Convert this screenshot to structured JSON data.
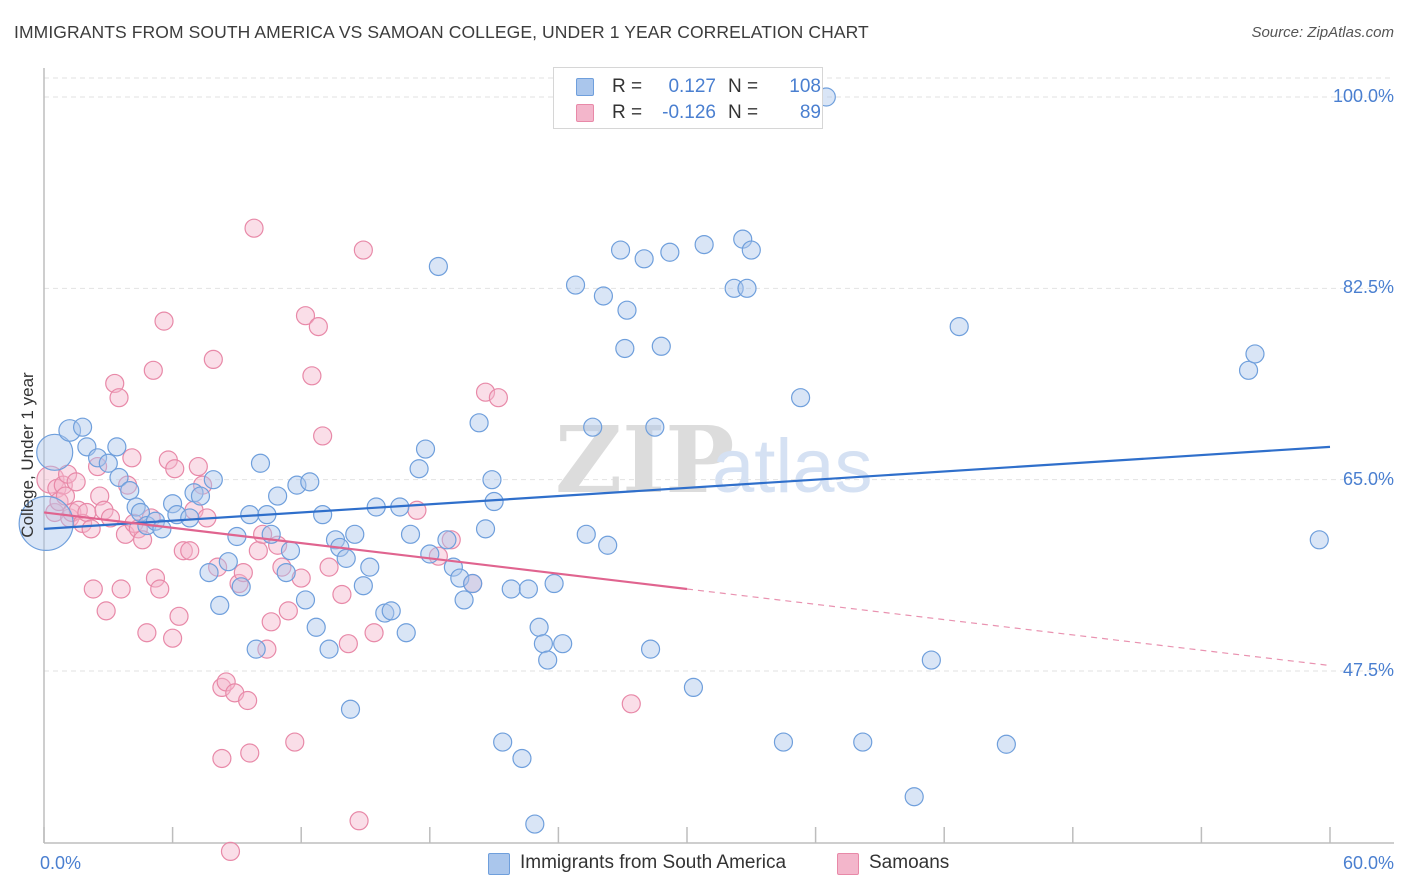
{
  "header": {
    "title": "IMMIGRANTS FROM SOUTH AMERICA VS SAMOAN COLLEGE, UNDER 1 YEAR CORRELATION CHART",
    "source": "Source: ZipAtlas.com"
  },
  "legend": {
    "row1": {
      "r_label": "R =",
      "r_value": "0.127",
      "n_label": "N =",
      "n_value": "108"
    },
    "row2": {
      "r_label": "R =",
      "r_value": "-0.126",
      "n_label": "N =",
      "n_value": "89"
    }
  },
  "colors": {
    "blue_fill": "#aac6ec",
    "blue_stroke": "#6f9fdc",
    "blue_line": "#2f6fcb",
    "pink_fill": "#f3b6cb",
    "pink_stroke": "#e889a8",
    "pink_line": "#e0648f",
    "tick_text": "#4a7fd0"
  },
  "watermark": {
    "part1": "ZIP",
    "part2": "atlas"
  },
  "chart_data": {
    "type": "scatter",
    "title": "IMMIGRANTS FROM SOUTH AMERICA VS SAMOAN COLLEGE, UNDER 1 YEAR CORRELATION CHART",
    "xlabel": "",
    "ylabel": "College, Under 1 year",
    "xlim": [
      0,
      60
    ],
    "ylim": [
      31,
      102
    ],
    "x_tick_labels": [
      "0.0%",
      "60.0%"
    ],
    "y_ticks": [
      47.5,
      65.0,
      82.5,
      100.0
    ],
    "y_tick_labels": [
      "47.5%",
      "65.0%",
      "82.5%",
      "100.0%"
    ],
    "grid": true,
    "legend_position": "top-center",
    "series": [
      {
        "name": "Immigrants from South America",
        "r": 0.127,
        "n": 108,
        "trend": {
          "x0": 0,
          "y0": 60.5,
          "x1": 60,
          "y1": 68.0,
          "dashed_from_x": null
        },
        "points": [
          [
            0.1,
            61.0,
            3.0
          ],
          [
            0.5,
            67.5,
            2.0
          ],
          [
            1.2,
            69.5,
            1.2
          ],
          [
            2.0,
            68.0,
            1.0
          ],
          [
            2.5,
            67.0,
            1.0
          ],
          [
            1.8,
            69.8,
            1.0
          ],
          [
            3.0,
            66.5,
            1.0
          ],
          [
            3.5,
            65.2,
            1.0
          ],
          [
            3.4,
            68.0,
            1.0
          ],
          [
            4.0,
            64.0,
            1.0
          ],
          [
            4.3,
            62.5,
            1.0
          ],
          [
            4.5,
            62.0,
            1.0
          ],
          [
            4.8,
            60.8,
            1.0
          ],
          [
            5.2,
            61.2,
            1.0
          ],
          [
            5.5,
            60.5,
            1.0
          ],
          [
            6.0,
            62.8,
            1.0
          ],
          [
            6.2,
            61.8,
            1.0
          ],
          [
            6.8,
            61.5,
            1.0
          ],
          [
            7.0,
            63.8,
            1.0
          ],
          [
            7.3,
            63.5,
            1.0
          ],
          [
            7.7,
            56.5,
            1.0
          ],
          [
            7.9,
            65.0,
            1.0
          ],
          [
            8.2,
            53.5,
            1.0
          ],
          [
            8.6,
            57.5,
            1.0
          ],
          [
            9.0,
            59.8,
            1.0
          ],
          [
            9.2,
            55.2,
            1.0
          ],
          [
            9.6,
            61.8,
            1.0
          ],
          [
            9.9,
            49.5,
            1.0
          ],
          [
            10.1,
            66.5,
            1.0
          ],
          [
            10.4,
            61.8,
            1.0
          ],
          [
            10.6,
            60.0,
            1.0
          ],
          [
            10.9,
            63.5,
            1.0
          ],
          [
            11.3,
            56.5,
            1.0
          ],
          [
            11.5,
            58.5,
            1.0
          ],
          [
            11.8,
            64.5,
            1.0
          ],
          [
            12.2,
            54.0,
            1.0
          ],
          [
            12.4,
            64.8,
            1.0
          ],
          [
            12.7,
            51.5,
            1.0
          ],
          [
            13.0,
            61.8,
            1.0
          ],
          [
            13.3,
            49.5,
            1.0
          ],
          [
            13.6,
            59.5,
            1.0
          ],
          [
            13.8,
            58.8,
            1.0
          ],
          [
            14.1,
            57.8,
            1.0
          ],
          [
            14.3,
            44.0,
            1.0
          ],
          [
            14.5,
            60.0,
            1.0
          ],
          [
            14.9,
            55.3,
            1.0
          ],
          [
            15.2,
            57.0,
            1.0
          ],
          [
            15.5,
            62.5,
            1.0
          ],
          [
            15.9,
            52.8,
            1.0
          ],
          [
            16.2,
            53.0,
            1.0
          ],
          [
            16.6,
            62.5,
            1.0
          ],
          [
            16.9,
            51.0,
            1.0
          ],
          [
            17.1,
            60.0,
            1.0
          ],
          [
            17.5,
            66.0,
            1.0
          ],
          [
            17.8,
            67.8,
            1.0
          ],
          [
            18.0,
            58.2,
            1.0
          ],
          [
            18.4,
            84.5,
            1.0
          ],
          [
            18.8,
            59.5,
            1.0
          ],
          [
            19.1,
            57.0,
            1.0
          ],
          [
            19.4,
            56.0,
            1.0
          ],
          [
            19.6,
            54.0,
            1.0
          ],
          [
            20.0,
            55.5,
            1.0
          ],
          [
            20.3,
            70.2,
            1.0
          ],
          [
            20.6,
            60.5,
            1.0
          ],
          [
            20.9,
            65.0,
            1.0
          ],
          [
            21.0,
            63.0,
            1.0
          ],
          [
            21.4,
            41.0,
            1.0
          ],
          [
            21.8,
            55.0,
            1.0
          ],
          [
            22.3,
            39.5,
            1.0
          ],
          [
            22.6,
            55.0,
            1.0
          ],
          [
            22.9,
            33.5,
            1.0
          ],
          [
            23.1,
            51.5,
            1.0
          ],
          [
            23.3,
            50.0,
            1.0
          ],
          [
            23.5,
            48.5,
            1.0
          ],
          [
            23.8,
            55.5,
            1.0
          ],
          [
            24.2,
            50.0,
            1.0
          ],
          [
            24.8,
            82.8,
            1.0
          ],
          [
            25.3,
            60.0,
            1.0
          ],
          [
            25.6,
            69.8,
            1.0
          ],
          [
            26.1,
            81.8,
            1.0
          ],
          [
            26.3,
            59.0,
            1.0
          ],
          [
            26.9,
            86.0,
            1.0
          ],
          [
            27.1,
            77.0,
            1.0
          ],
          [
            27.2,
            80.5,
            1.0
          ],
          [
            28.0,
            85.2,
            1.0
          ],
          [
            28.3,
            49.5,
            1.0
          ],
          [
            28.5,
            69.8,
            1.0
          ],
          [
            28.8,
            77.2,
            1.0
          ],
          [
            29.2,
            85.8,
            1.0
          ],
          [
            30.3,
            46.0,
            1.0
          ],
          [
            30.8,
            86.5,
            1.0
          ],
          [
            32.2,
            82.5,
            1.0
          ],
          [
            32.6,
            87.0,
            1.0
          ],
          [
            32.8,
            82.5,
            1.0
          ],
          [
            33.0,
            86.0,
            1.0
          ],
          [
            34.5,
            41.0,
            1.0
          ],
          [
            35.3,
            72.5,
            1.0
          ],
          [
            36.5,
            100.0,
            1.0
          ],
          [
            38.2,
            41.0,
            1.0
          ],
          [
            40.6,
            36.0,
            1.0
          ],
          [
            41.4,
            48.5,
            1.0
          ],
          [
            42.7,
            79.0,
            1.0
          ],
          [
            44.9,
            40.8,
            1.0
          ],
          [
            56.2,
            75.0,
            1.0
          ],
          [
            56.5,
            76.5,
            1.0
          ],
          [
            59.5,
            59.5,
            1.0
          ]
        ]
      },
      {
        "name": "Samoans",
        "r": -0.126,
        "n": 89,
        "trend": {
          "x0": 0,
          "y0": 62.0,
          "x1": 60,
          "y1": 48.0,
          "dashed_from_x": 30
        },
        "points": [
          [
            0.3,
            65.0,
            1.5
          ],
          [
            0.5,
            62.0,
            1.0
          ],
          [
            0.6,
            64.2,
            1.0
          ],
          [
            0.7,
            63.0,
            1.0
          ],
          [
            0.9,
            64.5,
            1.0
          ],
          [
            1.0,
            63.5,
            1.0
          ],
          [
            1.1,
            65.5,
            1.0
          ],
          [
            1.2,
            61.5,
            1.0
          ],
          [
            1.3,
            62.0,
            1.0
          ],
          [
            1.5,
            64.8,
            1.0
          ],
          [
            1.6,
            62.2,
            1.0
          ],
          [
            1.8,
            61.0,
            1.0
          ],
          [
            2.0,
            62.0,
            1.0
          ],
          [
            2.2,
            60.5,
            1.0
          ],
          [
            2.3,
            55.0,
            1.0
          ],
          [
            2.5,
            66.2,
            1.0
          ],
          [
            2.6,
            63.5,
            1.0
          ],
          [
            2.8,
            62.2,
            1.0
          ],
          [
            2.9,
            53.0,
            1.0
          ],
          [
            3.1,
            61.5,
            1.0
          ],
          [
            3.3,
            73.8,
            1.0
          ],
          [
            3.5,
            72.5,
            1.0
          ],
          [
            3.6,
            55.0,
            1.0
          ],
          [
            3.8,
            60.0,
            1.0
          ],
          [
            3.9,
            64.5,
            1.0
          ],
          [
            4.1,
            67.0,
            1.0
          ],
          [
            4.2,
            61.0,
            1.0
          ],
          [
            4.4,
            60.5,
            1.0
          ],
          [
            4.6,
            59.5,
            1.0
          ],
          [
            4.8,
            51.0,
            1.0
          ],
          [
            5.0,
            61.5,
            1.0
          ],
          [
            5.1,
            75.0,
            1.0
          ],
          [
            5.2,
            56.0,
            1.0
          ],
          [
            5.4,
            55.0,
            1.0
          ],
          [
            5.6,
            79.5,
            1.0
          ],
          [
            5.8,
            66.8,
            1.0
          ],
          [
            6.0,
            50.5,
            1.0
          ],
          [
            6.1,
            66.0,
            1.0
          ],
          [
            6.3,
            52.5,
            1.0
          ],
          [
            6.5,
            58.5,
            1.0
          ],
          [
            6.8,
            58.5,
            1.0
          ],
          [
            7.0,
            62.2,
            1.0
          ],
          [
            7.2,
            66.2,
            1.0
          ],
          [
            7.4,
            64.5,
            1.0
          ],
          [
            7.6,
            61.5,
            1.0
          ],
          [
            7.9,
            76.0,
            1.0
          ],
          [
            8.1,
            57.0,
            1.0
          ],
          [
            8.3,
            39.5,
            1.0
          ],
          [
            8.3,
            46.0,
            1.0
          ],
          [
            8.5,
            46.5,
            1.0
          ],
          [
            8.7,
            31.0,
            1.0
          ],
          [
            8.9,
            45.5,
            1.0
          ],
          [
            9.1,
            55.5,
            1.0
          ],
          [
            9.3,
            56.5,
            1.0
          ],
          [
            9.5,
            44.8,
            1.0
          ],
          [
            9.6,
            40.0,
            1.0
          ],
          [
            9.8,
            88.0,
            1.0
          ],
          [
            10.0,
            58.5,
            1.0
          ],
          [
            10.2,
            60.0,
            1.0
          ],
          [
            10.4,
            49.5,
            1.0
          ],
          [
            10.6,
            52.0,
            1.0
          ],
          [
            10.9,
            59.0,
            1.0
          ],
          [
            11.1,
            57.0,
            1.0
          ],
          [
            11.4,
            53.0,
            1.0
          ],
          [
            11.7,
            41.0,
            1.0
          ],
          [
            12.0,
            56.0,
            1.0
          ],
          [
            12.2,
            80.0,
            1.0
          ],
          [
            12.5,
            74.5,
            1.0
          ],
          [
            12.8,
            79.0,
            1.0
          ],
          [
            13.0,
            69.0,
            1.0
          ],
          [
            13.3,
            57.0,
            1.0
          ],
          [
            13.9,
            54.5,
            1.0
          ],
          [
            14.2,
            50.0,
            1.0
          ],
          [
            14.7,
            33.8,
            1.0
          ],
          [
            14.9,
            86.0,
            1.0
          ],
          [
            15.4,
            51.0,
            1.0
          ],
          [
            17.4,
            62.2,
            1.0
          ],
          [
            18.4,
            58.0,
            1.0
          ],
          [
            19.0,
            59.5,
            1.0
          ],
          [
            20.0,
            55.5,
            1.0
          ],
          [
            20.6,
            73.0,
            1.0
          ],
          [
            21.2,
            72.5,
            1.0
          ],
          [
            27.4,
            44.5,
            1.0
          ]
        ]
      }
    ]
  }
}
